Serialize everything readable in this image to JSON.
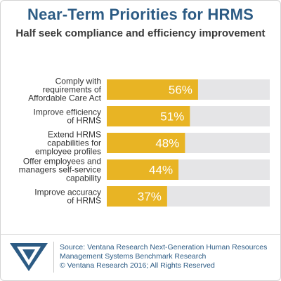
{
  "header": {
    "title": "Near-Term Priorities for HRMS",
    "subtitle": "Half seek compliance and efficiency improvement"
  },
  "chart_data": {
    "type": "bar",
    "orientation": "horizontal",
    "categories": [
      [
        "Comply with",
        "requirements of",
        "Affordable Care Act"
      ],
      [
        "Improve efficiency",
        "of HRMS"
      ],
      [
        "Extend HRMS",
        "capabilities for",
        "employee profiles"
      ],
      [
        "Offer employees and",
        "managers self-service",
        "capability"
      ],
      [
        "Improve accuracy",
        "of HRMS"
      ]
    ],
    "values": [
      56,
      51,
      48,
      44,
      37
    ],
    "value_labels": [
      "56%",
      "51%",
      "48%",
      "44%",
      "37%"
    ],
    "xlim": [
      0,
      100
    ],
    "unit": "%",
    "colors": {
      "bar": "#e8b424",
      "track": "#e5e5e7",
      "value_text": "#ffffff",
      "label_text": "#333333"
    }
  },
  "footer": {
    "logo_icon": "ventana-v-logo-icon",
    "source_line1": "Source: Ventana Research Next-Generation Human Resources",
    "source_line2": "Management Systems Benchmark Research",
    "copyright": "© Ventana Research 2016; All Rights Reserved"
  },
  "colors": {
    "title": "#2c5b84",
    "logo": "#2c5b84"
  }
}
